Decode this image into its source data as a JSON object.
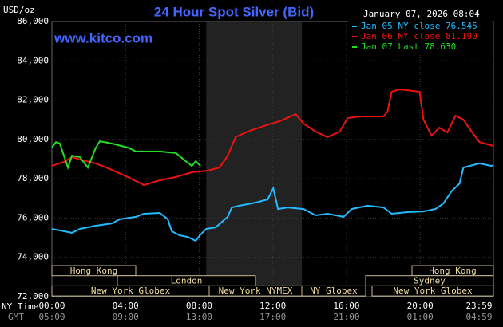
{
  "chart_data": {
    "type": "line",
    "title": "24 Hour Spot Silver (Bid)",
    "timestamp": "January 07, 2026 08:04",
    "unit_label": "USD/oz",
    "watermark": "www.kitco.com",
    "xlim": [
      0,
      23.98
    ],
    "ylim": [
      72000,
      86000
    ],
    "xticks": [
      {
        "value": 0,
        "label": "00:00"
      },
      {
        "value": 4,
        "label": "04:00"
      },
      {
        "value": 8,
        "label": "08:00"
      },
      {
        "value": 12,
        "label": "12:00"
      },
      {
        "value": 16,
        "label": "16:00"
      },
      {
        "value": 20,
        "label": "20:00"
      },
      {
        "value": 23.98,
        "label": "23:59"
      }
    ],
    "gmt_labels": [
      "05:00",
      "09:00",
      "13:00",
      "17:00",
      "21:00",
      "01:00",
      "04:59"
    ],
    "x_row_labels": [
      "NY Time",
      "GMT"
    ],
    "yticks": [
      {
        "value": 72000,
        "label": "72,000"
      },
      {
        "value": 74000,
        "label": "74,000"
      },
      {
        "value": 76000,
        "label": "76,000"
      },
      {
        "value": 78000,
        "label": "78,000"
      },
      {
        "value": 80000,
        "label": "80,000"
      },
      {
        "value": 82000,
        "label": "82,000"
      },
      {
        "value": 84000,
        "label": "84,000"
      },
      {
        "value": 86000,
        "label": "86,000"
      }
    ],
    "grid": true,
    "highlight": [
      8.38,
      13.58
    ],
    "sessions": [
      "Hong Kong",
      "Hong Kong",
      "London",
      "Sydney",
      "New York Globex",
      "New York NYMEX",
      "NY Globex",
      "New York Globex"
    ],
    "series": [
      {
        "name": "Jan 05 NY close 76.545",
        "color": "#22bbff",
        "x": [
          0,
          0.65,
          1.09,
          1.52,
          2.39,
          3.26,
          3.69,
          4.56,
          4.99,
          5.86,
          6.29,
          6.51,
          6.94,
          7.38,
          7.81,
          8.03,
          8.38,
          8.9,
          9.55,
          9.77,
          10.2,
          11.07,
          11.72,
          11.94,
          12.02,
          12.28,
          12.8,
          13.67,
          14.32,
          14.97,
          15.41,
          15.84,
          16.28,
          17.14,
          18.01,
          18.45,
          19.31,
          20.18,
          20.83,
          21.27,
          21.7,
          22.14,
          22.35,
          23.22,
          23.87,
          23.98
        ],
        "values": [
          75450,
          75330,
          75250,
          75450,
          75610,
          75730,
          75940,
          76060,
          76220,
          76260,
          75940,
          75330,
          75120,
          75040,
          74840,
          75120,
          75450,
          75530,
          76060,
          76540,
          76630,
          76790,
          76950,
          77360,
          77520,
          76460,
          76540,
          76460,
          76140,
          76220,
          76140,
          76060,
          76460,
          76630,
          76540,
          76220,
          76300,
          76340,
          76460,
          76750,
          77360,
          77760,
          78570,
          78780,
          78650,
          78690
        ]
      },
      {
        "name": "Jan 06 NY close 81.190",
        "color": "#ee1111",
        "x": [
          0,
          0.65,
          1.09,
          1.52,
          2.39,
          3.26,
          4.12,
          4.99,
          5.86,
          6.73,
          7.6,
          8.46,
          9.11,
          9.55,
          9.98,
          10.63,
          11.5,
          12.37,
          13.24,
          13.67,
          14.32,
          14.97,
          15.63,
          16.06,
          16.71,
          18.01,
          18.23,
          18.45,
          18.88,
          19.97,
          20.18,
          20.62,
          21.05,
          21.48,
          21.92,
          22.35,
          22.79,
          23.22,
          23.98
        ],
        "values": [
          78650,
          78860,
          79100,
          78980,
          78780,
          78450,
          78090,
          77680,
          77920,
          78090,
          78330,
          78410,
          78570,
          79180,
          80120,
          80400,
          80680,
          80930,
          81290,
          80810,
          80400,
          80120,
          80400,
          81090,
          81170,
          81170,
          81410,
          82430,
          82550,
          82430,
          81010,
          80200,
          80600,
          80360,
          81210,
          81010,
          80400,
          79870,
          79670
        ]
      },
      {
        "name": "Jan 07 Last 78.630",
        "color": "#22dd22",
        "x": [
          0,
          0.22,
          0.43,
          0.87,
          1.09,
          1.52,
          1.95,
          2.39,
          2.6,
          3.26,
          4.12,
          4.56,
          4.99,
          5.86,
          6.73,
          7.16,
          7.6,
          7.81,
          8.07
        ],
        "values": [
          79590,
          79870,
          79790,
          78570,
          79180,
          79100,
          78570,
          79590,
          79910,
          79790,
          79590,
          79390,
          79390,
          79390,
          79310,
          78980,
          78650,
          78900,
          78650
        ]
      }
    ]
  }
}
